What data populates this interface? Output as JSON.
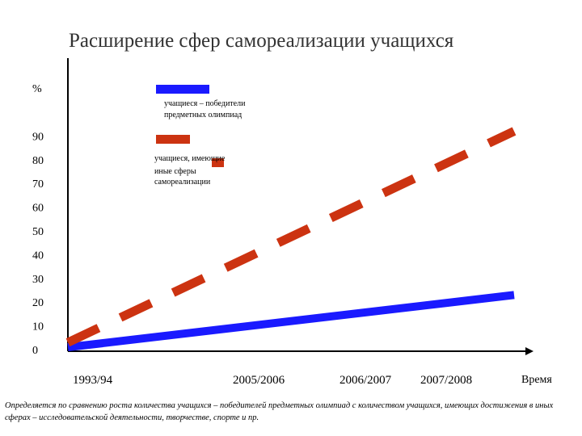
{
  "chart_data": {
    "type": "line",
    "title": "Расширение сфер самореализации учащихся",
    "ylabel": "%",
    "xlabel": "Время",
    "ylim": [
      0,
      100
    ],
    "yticks": [
      "0",
      "10",
      "20",
      "30",
      "40",
      "50",
      "60",
      "70",
      "80",
      "90"
    ],
    "x_tick_labels": [
      "1993/94",
      "2005/2006",
      "2006/2007",
      "2007/2008"
    ],
    "series": [
      {
        "name": "учащиеся – победители предметных олимпиад",
        "legend_lines": [
          "учащиеся – победители",
          "предметных олимпиад"
        ],
        "color": "#1a1aff",
        "style": "solid",
        "x": [
          0,
          1
        ],
        "values": [
          1,
          23
        ]
      },
      {
        "name": "учащиеся, имеющие иные сферы самореализации",
        "legend_lines": [
          "учащиеся, имеющие",
          "иные сферы",
          "самореализации"
        ],
        "color": "#cc3311",
        "style": "dashed",
        "x": [
          0,
          1
        ],
        "values": [
          3,
          92
        ]
      }
    ],
    "grid": false,
    "legend": "top-center"
  },
  "footnote": "Определяется по сравнению роста количества учащихся – победителей предметных олимпиад с количеством учащихся, имеющих достижения в иных сферах – исследовательской деятельности, творчестве, спорте и пр."
}
